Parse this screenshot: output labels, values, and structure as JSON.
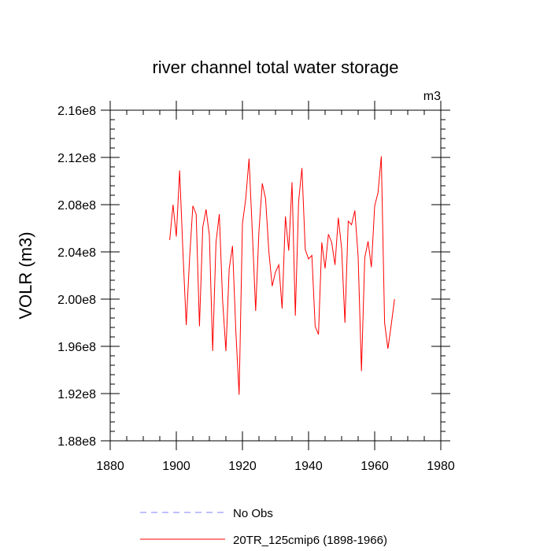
{
  "chart_data": {
    "type": "line",
    "title": "river channel total water storage",
    "units_label": "m3",
    "xlabel": "",
    "ylabel": "VOLR  (m3)",
    "xlim": [
      1880,
      1980
    ],
    "ylim": [
      188000000,
      216000000
    ],
    "x_ticks": [
      1880,
      1900,
      1920,
      1940,
      1960,
      1980
    ],
    "x_tick_labels": [
      "1880",
      "1900",
      "1920",
      "1940",
      "1960",
      "1980"
    ],
    "y_ticks": [
      188000000,
      192000000,
      196000000,
      200000000,
      204000000,
      208000000,
      212000000,
      216000000
    ],
    "y_tick_labels": [
      "1.88e8",
      "1.92e8",
      "1.96e8",
      "2.00e8",
      "2.04e8",
      "2.08e8",
      "2.12e8",
      "2.16e8"
    ],
    "grid": false,
    "legend_position": "bottom-center",
    "series": [
      {
        "name": "No Obs",
        "color": "#8080ff",
        "style": "dashed",
        "x": [],
        "values": []
      },
      {
        "name": "20TR_125cmip6 (1898-1966)",
        "color": "#ff0000",
        "style": "solid",
        "x": [
          1898,
          1899,
          1900,
          1901,
          1902,
          1903,
          1904,
          1905,
          1906,
          1907,
          1908,
          1909,
          1910,
          1911,
          1912,
          1913,
          1914,
          1915,
          1916,
          1917,
          1918,
          1919,
          1920,
          1921,
          1922,
          1923,
          1924,
          1925,
          1926,
          1927,
          1928,
          1929,
          1930,
          1931,
          1932,
          1933,
          1934,
          1935,
          1936,
          1937,
          1938,
          1939,
          1940,
          1941,
          1942,
          1943,
          1944,
          1945,
          1946,
          1947,
          1948,
          1949,
          1950,
          1951,
          1952,
          1953,
          1954,
          1955,
          1956,
          1957,
          1958,
          1959,
          1960,
          1961,
          1962,
          1963,
          1964,
          1965,
          1966
        ],
        "values": [
          205.0,
          208.0,
          205.3,
          210.9,
          204.0,
          197.8,
          203.4,
          207.9,
          207.2,
          197.7,
          206.1,
          207.6,
          205.4,
          195.6,
          204.8,
          207.2,
          199.9,
          195.6,
          202.6,
          204.5,
          197.3,
          191.9,
          206.4,
          208.5,
          211.9,
          205.6,
          199.0,
          205.8,
          209.8,
          208.5,
          204.0,
          201.1,
          202.3,
          202.9,
          199.2,
          207.0,
          204.1,
          209.9,
          198.6,
          208.3,
          211.1,
          204.2,
          203.4,
          203.7,
          197.7,
          197.0,
          204.8,
          202.6,
          205.5,
          204.8,
          202.9,
          206.9,
          204.3,
          198.0,
          206.6,
          206.3,
          207.5,
          203.6,
          193.9,
          203.5,
          204.9,
          202.7,
          207.9,
          209.0,
          212.1,
          198.0,
          195.8,
          197.8,
          200.0
        ]
      }
    ]
  }
}
